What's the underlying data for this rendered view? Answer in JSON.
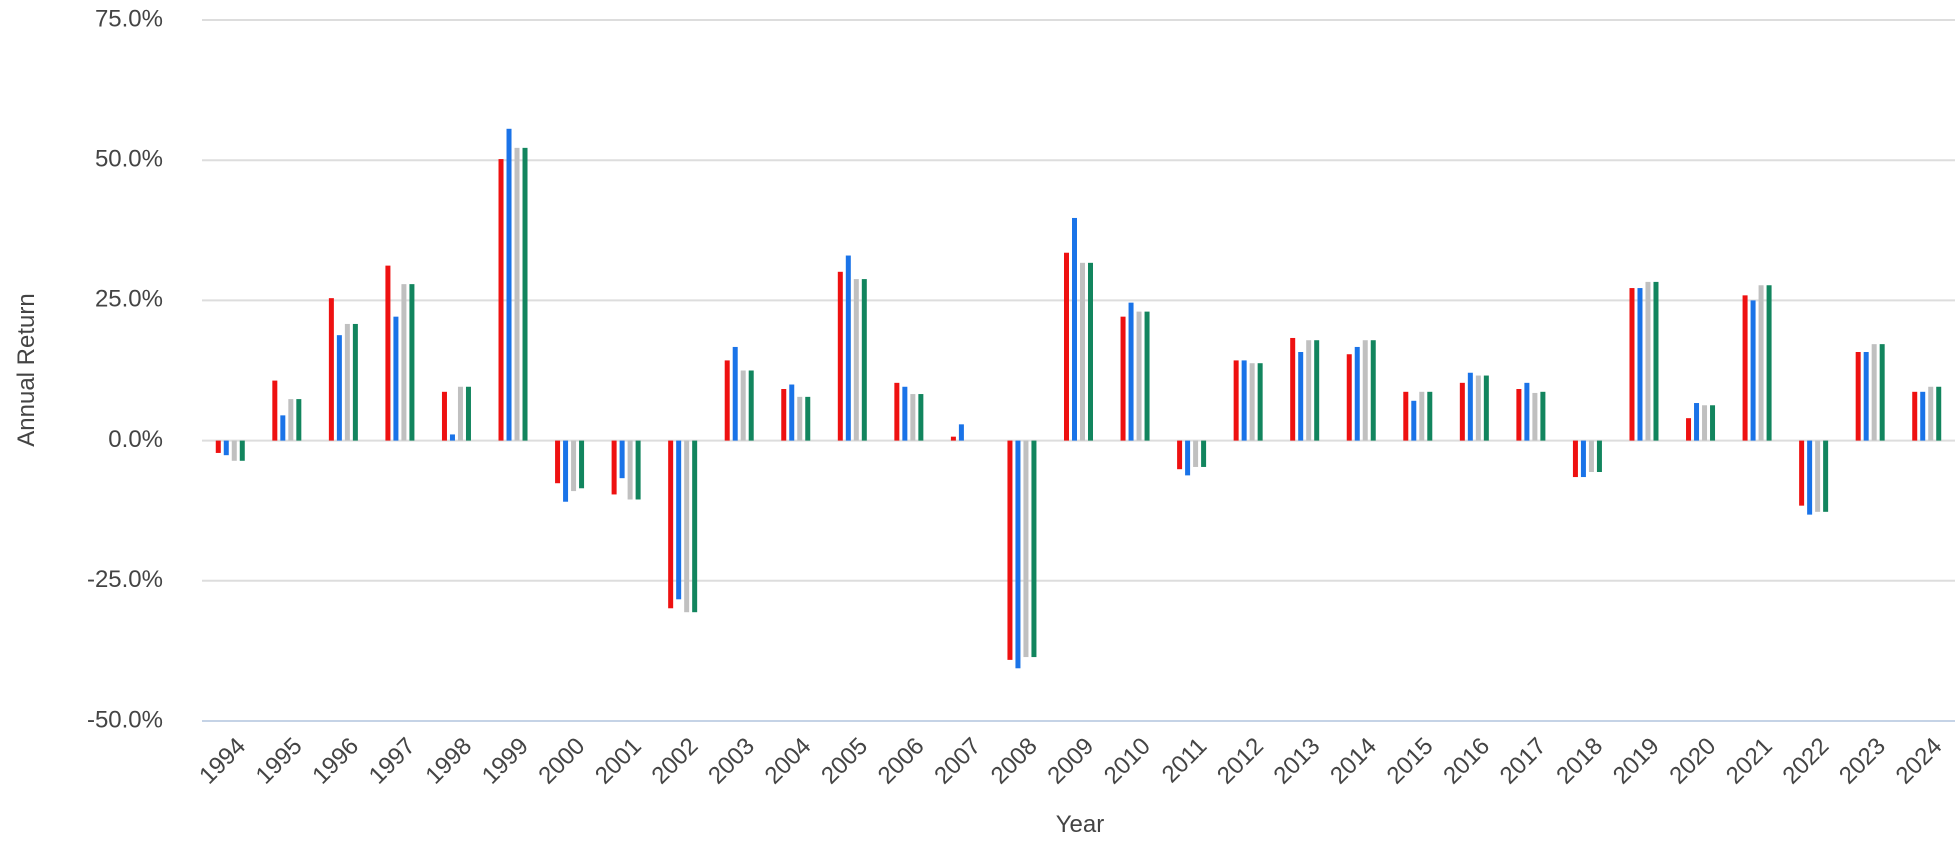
{
  "chart_data": {
    "type": "bar",
    "x_label": "Year",
    "y_label": "Annual Return",
    "categories": [
      "1994",
      "1995",
      "1996",
      "1997",
      "1998",
      "1999",
      "2000",
      "2001",
      "2002",
      "2003",
      "2004",
      "2005",
      "2006",
      "2007",
      "2008",
      "2009",
      "2010",
      "2011",
      "2012",
      "2013",
      "2014",
      "2015",
      "2016",
      "2017",
      "2018",
      "2019",
      "2020",
      "2021",
      "2022",
      "2023",
      "2024"
    ],
    "series": [
      {
        "color": "#ee1111",
        "values": [
          -2.2,
          10.7,
          25.4,
          31.2,
          8.7,
          50.2,
          -7.6,
          -9.6,
          -29.9,
          14.3,
          9.2,
          30.1,
          10.3,
          0.7,
          -39.1,
          33.5,
          22.1,
          -5.1,
          14.3,
          18.3,
          15.4,
          8.7,
          10.3,
          9.2,
          -6.5,
          27.2,
          4.0,
          25.9,
          -11.6,
          15.8,
          8.7
        ]
      },
      {
        "color": "#1a73e8",
        "values": [
          -2.6,
          4.5,
          18.8,
          22.1,
          1.1,
          55.6,
          -10.9,
          -6.7,
          -28.3,
          16.7,
          10.0,
          33.0,
          9.6,
          2.9,
          -40.6,
          39.7,
          24.6,
          -6.2,
          14.3,
          15.8,
          16.7,
          7.1,
          12.1,
          10.3,
          -6.5,
          27.2,
          6.7,
          25.0,
          -13.2,
          15.8,
          8.7
        ]
      },
      {
        "color": "#c0c0c0",
        "values": [
          -3.6,
          7.4,
          20.8,
          27.9,
          9.6,
          52.2,
          -9.0,
          -10.5,
          -30.6,
          12.5,
          7.8,
          28.8,
          8.3,
          0,
          -38.6,
          31.7,
          23.0,
          -4.7,
          13.8,
          17.9,
          17.9,
          8.7,
          11.6,
          8.5,
          -5.6,
          28.3,
          6.3,
          27.7,
          -12.7,
          17.2,
          9.6
        ]
      },
      {
        "color": "#12855e",
        "values": [
          -3.6,
          7.4,
          20.8,
          27.9,
          9.6,
          52.2,
          -8.5,
          -10.5,
          -30.6,
          12.5,
          7.8,
          28.8,
          8.3,
          0,
          -38.6,
          31.7,
          23.0,
          -4.7,
          13.8,
          17.9,
          17.9,
          8.7,
          11.6,
          8.7,
          -5.6,
          28.3,
          6.3,
          27.7,
          -12.7,
          17.2,
          9.6
        ]
      }
    ],
    "ylim": [
      -50,
      75
    ],
    "yticks": [
      {
        "value": -50,
        "label": "-50.0%"
      },
      {
        "value": -25,
        "label": "-25.0%"
      },
      {
        "value": 0,
        "label": "0.0%"
      },
      {
        "value": 25,
        "label": "25.0%"
      },
      {
        "value": 50,
        "label": "50.0%"
      },
      {
        "value": 75,
        "label": "75.0%"
      }
    ],
    "grid": true
  }
}
